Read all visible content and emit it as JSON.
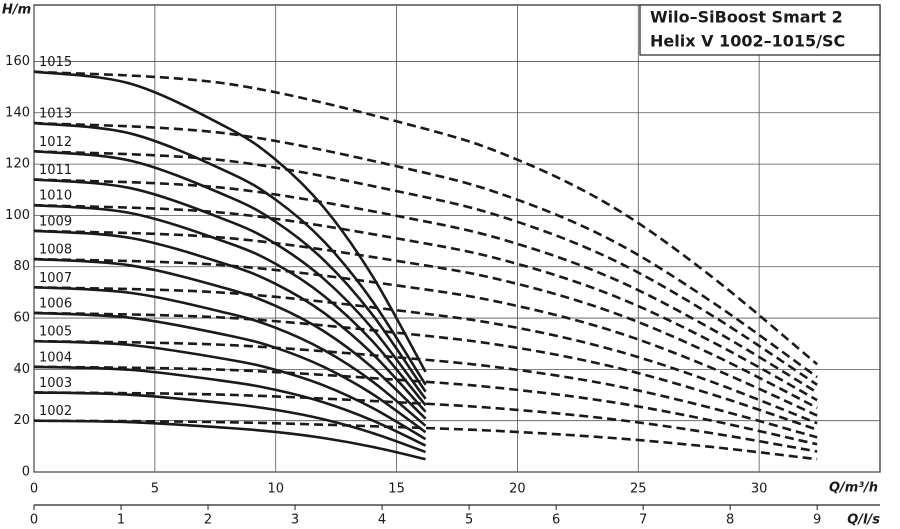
{
  "chart_data": {
    "type": "line",
    "title": "Wilo–SiBoost Smart 2",
    "subtitle": "Helix V 1002–1015/SC",
    "y_label": "H/m",
    "x_label": "Q/m³/h",
    "x2_label": "Q/l/s",
    "xlim": [
      0,
      35
    ],
    "xticks": [
      0,
      5,
      10,
      15,
      20,
      25,
      30
    ],
    "x2lim": [
      0,
      9.722
    ],
    "x2ticks": [
      0,
      1,
      2,
      3,
      4,
      5,
      6,
      7,
      8,
      9
    ],
    "ylim": [
      0,
      182
    ],
    "yticks": [
      0,
      20,
      40,
      60,
      80,
      100,
      120,
      140,
      160
    ],
    "grid": true,
    "color": "#1a1a1a",
    "series": [
      {
        "name": "1015",
        "style": "solid",
        "x": [
          0,
          4,
          8,
          10,
          12,
          14,
          16.2
        ],
        "values": [
          156,
          151.3,
          134.2,
          121.7,
          103,
          76.4,
          39
        ]
      },
      {
        "name": "1013",
        "style": "solid",
        "x": [
          0,
          4,
          8,
          10,
          12,
          14,
          16.2
        ],
        "values": [
          136,
          131.9,
          117,
          106.1,
          89.8,
          66.6,
          34
        ]
      },
      {
        "name": "1012",
        "style": "solid",
        "x": [
          0,
          4,
          8,
          10,
          12,
          14,
          16.2
        ],
        "values": [
          125,
          121.3,
          107.5,
          97.5,
          82.5,
          61.3,
          31.3
        ]
      },
      {
        "name": "1011",
        "style": "solid",
        "x": [
          0,
          4,
          8,
          10,
          12,
          14,
          16.2
        ],
        "values": [
          114,
          110.6,
          98,
          88.9,
          75.2,
          55.9,
          28.5
        ]
      },
      {
        "name": "1010",
        "style": "solid",
        "x": [
          0,
          4,
          8,
          10,
          12,
          14,
          16.2
        ],
        "values": [
          104,
          100.9,
          89.4,
          81.1,
          68.6,
          51,
          26
        ]
      },
      {
        "name": "1009",
        "style": "solid",
        "x": [
          0,
          4,
          8,
          10,
          12,
          14,
          16.2
        ],
        "values": [
          94,
          91.2,
          80.8,
          73.3,
          62,
          46.1,
          23.5
        ]
      },
      {
        "name": "1008",
        "style": "solid",
        "x": [
          0,
          4,
          8,
          10,
          12,
          14,
          16.2
        ],
        "values": [
          83,
          80.5,
          71.4,
          64.7,
          54.8,
          40.7,
          20.8
        ]
      },
      {
        "name": "1007",
        "style": "solid",
        "x": [
          0,
          4,
          8,
          10,
          12,
          14,
          16.2
        ],
        "values": [
          72,
          69.8,
          61.9,
          56.2,
          47.5,
          35.3,
          18
        ]
      },
      {
        "name": "1006",
        "style": "solid",
        "x": [
          0,
          4,
          8,
          10,
          12,
          14,
          16.2
        ],
        "values": [
          62,
          60.1,
          53.3,
          48.4,
          40.9,
          30.4,
          15.5
        ]
      },
      {
        "name": "1005",
        "style": "solid",
        "x": [
          0,
          4,
          8,
          10,
          12,
          14,
          16.2
        ],
        "values": [
          51,
          49.5,
          43.9,
          39.8,
          33.7,
          25,
          12.8
        ]
      },
      {
        "name": "1004",
        "style": "solid",
        "x": [
          0,
          4,
          8,
          10,
          12,
          14,
          16.2
        ],
        "values": [
          41,
          39.8,
          35.3,
          32,
          27.1,
          20.1,
          10.3
        ]
      },
      {
        "name": "1003",
        "style": "solid",
        "x": [
          0,
          4,
          8,
          10,
          12,
          14,
          16.2
        ],
        "values": [
          31,
          30.1,
          26.7,
          24.2,
          20.5,
          15.2,
          7.8
        ]
      },
      {
        "name": "1002",
        "style": "solid",
        "x": [
          0,
          4,
          8,
          10,
          12,
          14,
          16.2
        ],
        "values": [
          20,
          19.4,
          17.2,
          15.6,
          13.2,
          9.8,
          5
        ]
      },
      {
        "style": "dashed",
        "x": [
          0,
          8,
          16,
          20,
          24,
          28,
          32.4
        ],
        "values": [
          156,
          151.3,
          134.2,
          121.7,
          103,
          76.4,
          42
        ]
      },
      {
        "style": "dashed",
        "x": [
          0,
          8,
          16,
          20,
          24,
          28,
          32.4
        ],
        "values": [
          136,
          131.9,
          117,
          106.1,
          89.8,
          66.6,
          37
        ]
      },
      {
        "style": "dashed",
        "x": [
          0,
          8,
          16,
          20,
          24,
          28,
          32.4
        ],
        "values": [
          125,
          121.3,
          107.5,
          97.5,
          82.5,
          61.3,
          34
        ]
      },
      {
        "style": "dashed",
        "x": [
          0,
          8,
          16,
          20,
          24,
          28,
          32.4
        ],
        "values": [
          114,
          110.6,
          98,
          88.9,
          75.2,
          55.9,
          31
        ]
      },
      {
        "style": "dashed",
        "x": [
          0,
          8,
          16,
          20,
          24,
          28,
          32.4
        ],
        "values": [
          104,
          100.9,
          89.4,
          81.1,
          68.6,
          51,
          28
        ]
      },
      {
        "style": "dashed",
        "x": [
          0,
          8,
          16,
          20,
          24,
          28,
          32.4
        ],
        "values": [
          94,
          91.2,
          80.8,
          73.3,
          62,
          46.1,
          25
        ]
      },
      {
        "style": "dashed",
        "x": [
          0,
          8,
          16,
          20,
          24,
          28,
          32.4
        ],
        "values": [
          83,
          80.5,
          71.4,
          64.7,
          54.8,
          40.7,
          22
        ]
      },
      {
        "style": "dashed",
        "x": [
          0,
          8,
          16,
          20,
          24,
          28,
          32.4
        ],
        "values": [
          72,
          69.8,
          61.9,
          56.2,
          47.5,
          35.3,
          19
        ]
      },
      {
        "style": "dashed",
        "x": [
          0,
          8,
          16,
          20,
          24,
          28,
          32.4
        ],
        "values": [
          62,
          60.1,
          53.3,
          48.4,
          40.9,
          30.4,
          16.5
        ]
      },
      {
        "style": "dashed",
        "x": [
          0,
          8,
          16,
          20,
          24,
          28,
          32.4
        ],
        "values": [
          51,
          49.5,
          43.9,
          39.8,
          33.7,
          25,
          13.5
        ]
      },
      {
        "style": "dashed",
        "x": [
          0,
          8,
          16,
          20,
          24,
          28,
          32.4
        ],
        "values": [
          41,
          39.8,
          35.3,
          32,
          27.1,
          20.1,
          10.8
        ]
      },
      {
        "style": "dashed",
        "x": [
          0,
          8,
          16,
          20,
          24,
          28,
          32.4
        ],
        "values": [
          31,
          30.1,
          26.7,
          24.2,
          20.5,
          15.2,
          8
        ]
      },
      {
        "style": "dashed",
        "x": [
          0,
          8,
          16,
          20,
          24,
          28,
          32.4
        ],
        "values": [
          20,
          19.4,
          17.2,
          15.6,
          13.2,
          9.8,
          5
        ]
      }
    ]
  }
}
